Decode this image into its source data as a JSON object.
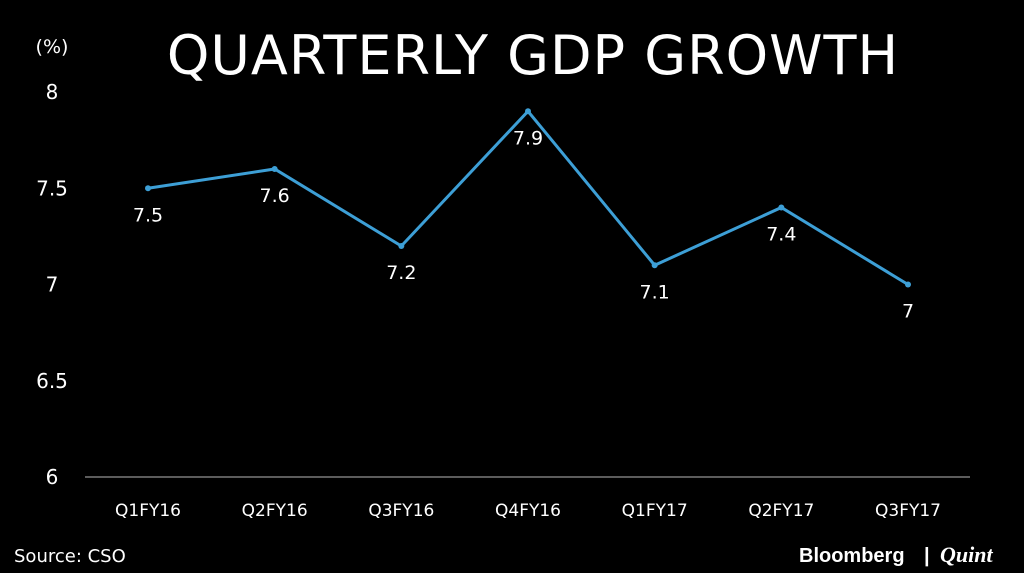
{
  "chart_data": {
    "type": "line",
    "title": "QUARTERLY GDP GROWTH",
    "ylabel": "(%)",
    "categories": [
      "Q1FY16",
      "Q2FY16",
      "Q3FY16",
      "Q4FY16",
      "Q1FY17",
      "Q2FY17",
      "Q3FY17"
    ],
    "values": [
      7.5,
      7.6,
      7.2,
      7.9,
      7.1,
      7.4,
      7
    ],
    "data_labels": [
      "7.5",
      "7.6",
      "7.2",
      "7.9",
      "7.1",
      "7.4",
      "7"
    ],
    "ylim": [
      6,
      8
    ],
    "yticks": [
      "6",
      "6.5",
      "7",
      "7.5",
      "8"
    ],
    "grid": false,
    "legend": "none",
    "line_color": "#3d9fd6",
    "background": "#000000"
  },
  "source": "Source: CSO",
  "brand": {
    "name": "Bloomberg",
    "separator": "|",
    "suffix": "Quint"
  }
}
